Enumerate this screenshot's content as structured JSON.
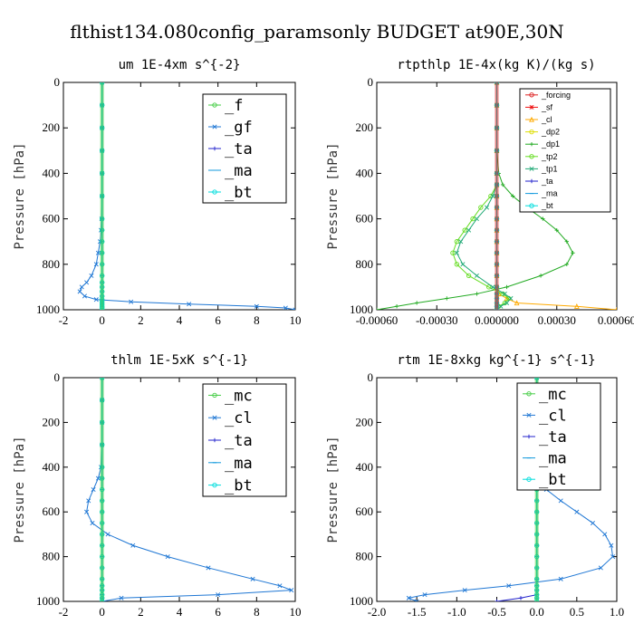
{
  "figure": {
    "suptitle": "flthist134.080config_paramsonly  BUDGET at90E,30N",
    "ylabel": "Pressure [hPa]"
  },
  "chart_data": [
    {
      "type": "line",
      "title": "um  1E-4xm s^{-2}",
      "ylabel": "Pressure [hPa]",
      "xlim": [
        -2,
        10
      ],
      "ylim": [
        1000,
        0
      ],
      "xticks": [
        "-2",
        "0",
        "2",
        "4",
        "6",
        "8",
        "10"
      ],
      "xtick_values": [
        -2,
        0,
        2,
        4,
        6,
        8,
        10
      ],
      "yticks": [
        "0",
        "200",
        "400",
        "600",
        "800",
        "1000"
      ],
      "ytick_values": [
        0,
        200,
        400,
        600,
        800,
        1000
      ],
      "legend": "top-right",
      "y": [
        0,
        100,
        200,
        300,
        400,
        500,
        600,
        650,
        700,
        750,
        800,
        850,
        880,
        900,
        920,
        940,
        955,
        965,
        975,
        985,
        992,
        1000
      ],
      "series": [
        {
          "name": "_f",
          "color": "#44cc44",
          "marker": "o",
          "values": [
            0,
            0,
            0,
            0,
            0,
            0,
            0,
            0,
            0,
            0,
            0,
            0,
            0,
            0,
            0,
            0,
            0,
            0,
            0,
            0,
            0,
            0
          ]
        },
        {
          "name": "_gf",
          "color": "#1f77d4",
          "marker": "x",
          "values": [
            0,
            0,
            0,
            0,
            0,
            0,
            -0.02,
            -0.05,
            -0.1,
            -0.2,
            -0.3,
            -0.55,
            -0.8,
            -1.05,
            -1.15,
            -0.9,
            -0.3,
            1.5,
            4.5,
            8,
            9.5,
            10
          ]
        },
        {
          "name": "_ta",
          "color": "#2222cc",
          "marker": "+",
          "values": [
            0,
            0,
            0,
            0,
            0,
            0,
            0,
            0,
            0,
            0,
            0,
            0,
            0,
            0,
            0,
            0,
            0,
            0,
            0,
            0,
            0,
            0
          ]
        },
        {
          "name": "_ma",
          "color": "#1199dd",
          "marker": "-",
          "values": [
            0,
            0,
            0,
            0,
            0,
            0,
            0,
            0,
            0,
            0,
            0,
            0,
            0,
            0,
            0,
            0,
            0,
            0,
            0,
            0,
            0,
            0
          ]
        },
        {
          "name": "_bt",
          "color": "#00dddd",
          "marker": "o",
          "values": [
            0,
            0,
            0,
            0,
            0,
            0,
            0,
            0,
            0,
            0,
            0,
            0,
            0,
            0,
            0,
            0,
            0,
            0,
            0,
            0,
            0,
            0
          ]
        }
      ]
    },
    {
      "type": "line",
      "title": "rtpthlp  1E-4x(kg K)/(kg s)",
      "ylabel": "Pressure [hPa]",
      "xlim": [
        -0.0006,
        0.0006
      ],
      "ylim": [
        1000,
        0
      ],
      "xticks": [
        "-0.00060",
        "-0.00030",
        "0.000000",
        "0.00030",
        "0.00060"
      ],
      "xtick_values": [
        -0.0006,
        -0.0003,
        0.0,
        0.0003,
        0.0006
      ],
      "yticks": [
        "0",
        "200",
        "400",
        "600",
        "800",
        "1000"
      ],
      "ytick_values": [
        0,
        200,
        400,
        600,
        800,
        1000
      ],
      "legend": "top-right",
      "y": [
        0,
        100,
        200,
        300,
        400,
        450,
        500,
        550,
        600,
        650,
        700,
        750,
        800,
        850,
        900,
        930,
        950,
        970,
        985,
        1000
      ],
      "series": [
        {
          "name": "_forcing",
          "color": "#dd2222",
          "marker": "o",
          "values": [
            0,
            0,
            0,
            0,
            0,
            0,
            0,
            0,
            0,
            0,
            0,
            0,
            0,
            0,
            0,
            0,
            0,
            0,
            0,
            0
          ]
        },
        {
          "name": "_sf",
          "color": "#ee1111",
          "marker": "*",
          "values": [
            0,
            0,
            0,
            0,
            0,
            0,
            0,
            0,
            0,
            0,
            0,
            0,
            0,
            0,
            0,
            0,
            0,
            0,
            0,
            0
          ]
        },
        {
          "name": "_cl",
          "color": "#ffaa00",
          "marker": "^",
          "values": [
            0,
            0,
            0,
            0,
            0,
            0,
            0,
            0,
            0,
            0,
            0,
            0,
            0,
            0,
            0,
            1e-05,
            5e-05,
            0.0001,
            0.0004,
            0.0006
          ]
        },
        {
          "name": "_dp2",
          "color": "#dddd00",
          "marker": "o",
          "values": [
            0,
            0,
            0,
            0,
            0,
            0,
            0,
            0,
            0,
            0,
            0,
            0,
            0,
            0,
            0,
            0,
            0,
            0,
            0,
            0
          ]
        },
        {
          "name": "_dp1",
          "color": "#22aa22",
          "marker": "+",
          "values": [
            0,
            0,
            0,
            0,
            1e-05,
            3e-05,
            8e-05,
            0.00015,
            0.00023,
            0.0003,
            0.00035,
            0.00038,
            0.00035,
            0.00022,
            5e-05,
            -0.0001,
            -0.00025,
            -0.0004,
            -0.0005,
            -0.0006
          ]
        },
        {
          "name": "_tp2",
          "color": "#66dd22",
          "marker": "o",
          "values": [
            0,
            0,
            0,
            0,
            0,
            0,
            -3e-05,
            -8e-05,
            -0.00012,
            -0.00016,
            -0.0002,
            -0.00022,
            -0.0002,
            -0.00014,
            -4e-05,
            3e-05,
            6e-05,
            4e-05,
            1e-05,
            0
          ]
        },
        {
          "name": "_tp1",
          "color": "#22aa77",
          "marker": "x",
          "values": [
            0,
            0,
            0,
            0,
            0,
            0,
            -2e-05,
            -5e-05,
            -0.0001,
            -0.00014,
            -0.00018,
            -0.0002,
            -0.00017,
            -0.0001,
            -2e-05,
            4e-05,
            7e-05,
            5e-05,
            2e-05,
            0
          ]
        },
        {
          "name": "_ta",
          "color": "#2222cc",
          "marker": "+",
          "values": [
            0,
            0,
            0,
            0,
            0,
            0,
            0,
            0,
            0,
            0,
            0,
            0,
            0,
            0,
            0,
            0,
            0,
            0,
            0,
            0
          ]
        },
        {
          "name": "_ma",
          "color": "#1199dd",
          "marker": "-",
          "values": [
            0,
            0,
            0,
            0,
            0,
            0,
            0,
            0,
            0,
            0,
            0,
            0,
            0,
            0,
            0,
            0,
            0,
            0,
            0,
            0
          ]
        },
        {
          "name": "_bt",
          "color": "#00dddd",
          "marker": "o",
          "values": [
            0,
            0,
            0,
            0,
            0,
            0,
            0,
            0,
            0,
            0,
            0,
            0,
            0,
            0,
            0,
            0,
            0,
            0,
            0,
            0
          ]
        }
      ]
    },
    {
      "type": "line",
      "title": "thlm  1E-5xK s^{-1}",
      "ylabel": "Pressure [hPa]",
      "xlim": [
        -2,
        10
      ],
      "ylim": [
        1000,
        0
      ],
      "xticks": [
        "-2",
        "0",
        "2",
        "4",
        "6",
        "8",
        "10"
      ],
      "xtick_values": [
        -2,
        0,
        2,
        4,
        6,
        8,
        10
      ],
      "yticks": [
        "0",
        "200",
        "400",
        "600",
        "800",
        "1000"
      ],
      "ytick_values": [
        0,
        200,
        400,
        600,
        800,
        1000
      ],
      "legend": "top-right",
      "y": [
        0,
        100,
        200,
        300,
        400,
        450,
        500,
        550,
        600,
        650,
        700,
        750,
        800,
        850,
        900,
        930,
        950,
        970,
        985,
        1000
      ],
      "series": [
        {
          "name": "_mc",
          "color": "#44cc44",
          "marker": "o",
          "values": [
            0,
            0,
            0,
            0,
            0,
            0,
            0,
            0,
            0,
            0,
            0,
            0,
            0,
            0,
            0,
            0,
            0,
            0,
            0,
            0
          ]
        },
        {
          "name": "_cl",
          "color": "#1f77d4",
          "marker": "x",
          "values": [
            0,
            0,
            0,
            0,
            -0.05,
            -0.2,
            -0.45,
            -0.7,
            -0.8,
            -0.5,
            0.3,
            1.6,
            3.4,
            5.5,
            7.8,
            9.2,
            9.8,
            6,
            1,
            0
          ]
        },
        {
          "name": "_ta",
          "color": "#2222cc",
          "marker": "+",
          "values": [
            0,
            0,
            0,
            0,
            0,
            0,
            0,
            0,
            0,
            0,
            0,
            0,
            0,
            0,
            0,
            0,
            0,
            0,
            0,
            0
          ]
        },
        {
          "name": "_ma",
          "color": "#1199dd",
          "marker": "-",
          "values": [
            0,
            0,
            0,
            0,
            0,
            0,
            0,
            0,
            0,
            0,
            0,
            0,
            0,
            0,
            0,
            0,
            0,
            0,
            0,
            0
          ]
        },
        {
          "name": "_bt",
          "color": "#00dddd",
          "marker": "o",
          "values": [
            0,
            0,
            0,
            0,
            0,
            0,
            0,
            0,
            0,
            0,
            0,
            0,
            0,
            0,
            0,
            0,
            0,
            0,
            0,
            0
          ]
        }
      ]
    },
    {
      "type": "line",
      "title": "rtm  1E-8xkg kg^{-1} s^{-1}",
      "ylabel": "Pressure [hPa]",
      "xlim": [
        -2.0,
        1.0
      ],
      "ylim": [
        1000,
        0
      ],
      "xticks": [
        "-2.0",
        "-1.5",
        "-1.0",
        "-0.5",
        "0.0",
        "0.5",
        "1.0"
      ],
      "xtick_values": [
        -2.0,
        -1.5,
        -1.0,
        -0.5,
        0.0,
        0.5,
        1.0
      ],
      "yticks": [
        "0",
        "200",
        "400",
        "600",
        "800",
        "1000"
      ],
      "ytick_values": [
        0,
        200,
        400,
        600,
        800,
        1000
      ],
      "legend": "top-right",
      "y": [
        0,
        100,
        200,
        300,
        400,
        450,
        500,
        550,
        600,
        650,
        700,
        750,
        800,
        850,
        900,
        930,
        950,
        970,
        985,
        1000
      ],
      "series": [
        {
          "name": "_mc",
          "color": "#44cc44",
          "marker": "o",
          "values": [
            0,
            0,
            0,
            0,
            0,
            0,
            0,
            0,
            0,
            0,
            0,
            0,
            0,
            0,
            0,
            0,
            0,
            0,
            0,
            0
          ]
        },
        {
          "name": "_cl",
          "color": "#1f77d4",
          "marker": "x",
          "values": [
            0,
            0,
            0,
            0,
            0.01,
            0.04,
            0.12,
            0.3,
            0.5,
            0.7,
            0.85,
            0.93,
            0.95,
            0.8,
            0.3,
            -0.35,
            -0.9,
            -1.4,
            -1.6,
            -1.5
          ]
        },
        {
          "name": "_ta",
          "color": "#2222cc",
          "marker": "+",
          "values": [
            0,
            0,
            0,
            0,
            0,
            0,
            0,
            0,
            0,
            0,
            0,
            0,
            0,
            0,
            0,
            0,
            0,
            0,
            -0.2,
            -0.5
          ]
        },
        {
          "name": "_ma",
          "color": "#1199dd",
          "marker": "-",
          "values": [
            0,
            0,
            0,
            0,
            0,
            0,
            0,
            0,
            0,
            0,
            0,
            0,
            0,
            0,
            0,
            0,
            0,
            0,
            0,
            0
          ]
        },
        {
          "name": "_bt",
          "color": "#00dddd",
          "marker": "o",
          "values": [
            0,
            0,
            0,
            0,
            0,
            0,
            0,
            0,
            0,
            0,
            0,
            0,
            0,
            0,
            0,
            0,
            0,
            0,
            0,
            0
          ]
        }
      ]
    }
  ]
}
